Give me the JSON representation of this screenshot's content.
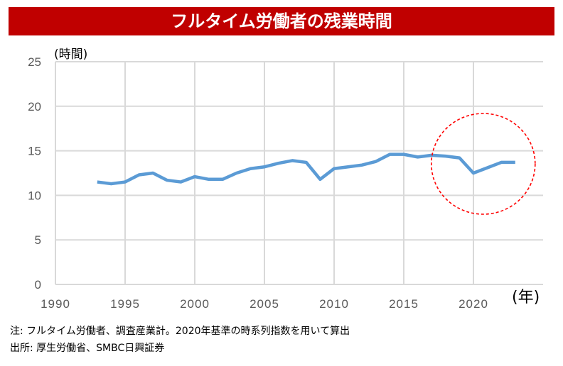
{
  "title": "フルタイム労働者の残業時間",
  "chart_data": {
    "type": "line",
    "title": "フルタイム労働者の残業時間",
    "ylabel": "(時間)",
    "xlabel": "(年)",
    "xlim": [
      1990,
      2025
    ],
    "ylim": [
      0,
      25
    ],
    "xticks": [
      1990,
      1995,
      2000,
      2005,
      2010,
      2015,
      2020
    ],
    "yticks": [
      0,
      5,
      10,
      15,
      20,
      25
    ],
    "grid": true,
    "series_color": "#5B9BD5",
    "x": [
      1993,
      1994,
      1995,
      1996,
      1997,
      1998,
      1999,
      2000,
      2001,
      2002,
      2003,
      2004,
      2005,
      2006,
      2007,
      2008,
      2009,
      2010,
      2011,
      2012,
      2013,
      2014,
      2015,
      2016,
      2017,
      2018,
      2019,
      2020,
      2021,
      2022,
      2023
    ],
    "values": [
      11.5,
      11.3,
      11.5,
      12.3,
      12.5,
      11.7,
      11.5,
      12.1,
      11.8,
      11.8,
      12.5,
      13.0,
      13.2,
      13.6,
      13.9,
      13.7,
      11.8,
      13.0,
      13.2,
      13.4,
      13.8,
      14.6,
      14.6,
      14.3,
      14.5,
      14.4,
      14.2,
      12.5,
      13.1,
      13.7,
      13.7
    ],
    "annotation": {
      "type": "dashed-circle",
      "color": "#FF0000",
      "x_range": [
        2017,
        2024
      ]
    }
  },
  "notes": [
    "注: フルタイム労働者、調査産業計。2020年基準の時系列指数を用いて算出",
    "出所: 厚生労働省、SMBC日興証券"
  ]
}
